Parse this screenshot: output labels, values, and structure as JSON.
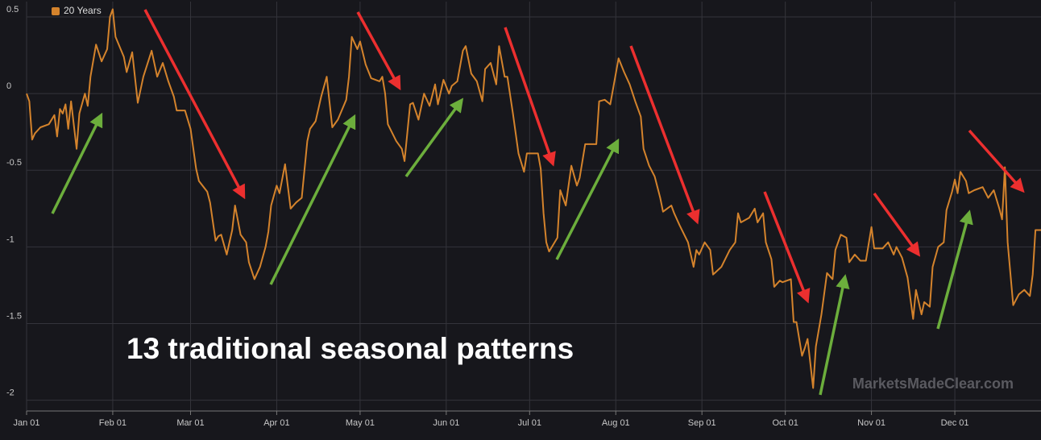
{
  "chart_data": {
    "type": "line",
    "annotation": "13 traditional seasonal patterns",
    "watermark": "MarketsMadeClear.com",
    "x": [
      0,
      1,
      2,
      3,
      5,
      8,
      10,
      11,
      12,
      13,
      14,
      15,
      16,
      18,
      19,
      21,
      22,
      23,
      25,
      27,
      29,
      30,
      31,
      32,
      35,
      36,
      38,
      40,
      42,
      45,
      47,
      49,
      51,
      53,
      54,
      57,
      59,
      61,
      62,
      65,
      66,
      68,
      69,
      70,
      72,
      74,
      75,
      77,
      79,
      80,
      82,
      84,
      86,
      87,
      88,
      90,
      91,
      93,
      95,
      97,
      99,
      101,
      102,
      104,
      106,
      108,
      110,
      112,
      115,
      116,
      117,
      119,
      120,
      122,
      124,
      127,
      128,
      129,
      130,
      133,
      135,
      136,
      138,
      139,
      141,
      143,
      145,
      147,
      148,
      150,
      152,
      153,
      155,
      157,
      158,
      160,
      162,
      164,
      165,
      167,
      169,
      170,
      172,
      173,
      175,
      177,
      179,
      180,
      184,
      185,
      186,
      187,
      188,
      191,
      192,
      194,
      196,
      198,
      199,
      201,
      204,
      205,
      206,
      208,
      210,
      213,
      215,
      217,
      219,
      221,
      222,
      224,
      226,
      228,
      229,
      232,
      233,
      235,
      238,
      240,
      241,
      242,
      244,
      246,
      247,
      250,
      253,
      255,
      256,
      257,
      260,
      262,
      263,
      265,
      266,
      268,
      269,
      271,
      272,
      275,
      276,
      277,
      279,
      280,
      281,
      283,
      284,
      286,
      288,
      290,
      291,
      293,
      295,
      296,
      298,
      300,
      302,
      304,
      305,
      308,
      310,
      312,
      313,
      315,
      317,
      319,
      320,
      322,
      323,
      325,
      326,
      328,
      330,
      331,
      333,
      334,
      335,
      336,
      338,
      339,
      341,
      344,
      346,
      348,
      350,
      351,
      352,
      353,
      355,
      357,
      359,
      361,
      362,
      363,
      365
    ],
    "series": [
      {
        "name": "20 Years",
        "color": "#d4832c",
        "values": [
          0,
          -0.05,
          -0.3,
          -0.26,
          -0.22,
          -0.2,
          -0.14,
          -0.28,
          -0.1,
          -0.13,
          -0.07,
          -0.23,
          -0.05,
          -0.36,
          -0.13,
          0,
          -0.08,
          0.11,
          0.32,
          0.21,
          0.29,
          0.5,
          0.55,
          0.37,
          0.24,
          0.14,
          0.27,
          -0.06,
          0.11,
          0.28,
          0.11,
          0.2,
          0.08,
          -0.02,
          -0.11,
          -0.11,
          -0.23,
          -0.49,
          -0.57,
          -0.64,
          -0.71,
          -0.96,
          -0.93,
          -0.92,
          -1.05,
          -0.89,
          -0.73,
          -0.92,
          -0.97,
          -1.1,
          -1.21,
          -1.13,
          -1.0,
          -0.9,
          -0.73,
          -0.6,
          -0.65,
          -0.46,
          -0.75,
          -0.71,
          -0.68,
          -0.31,
          -0.23,
          -0.18,
          -0.02,
          0.11,
          -0.22,
          -0.17,
          -0.04,
          0.11,
          0.37,
          0.29,
          0.34,
          0.19,
          0.1,
          0.08,
          0.11,
          0,
          -0.2,
          -0.31,
          -0.36,
          -0.44,
          -0.07,
          -0.06,
          -0.17,
          0,
          -0.08,
          0.06,
          -0.07,
          0.09,
          0,
          0.05,
          0.08,
          0.28,
          0.31,
          0.13,
          0.08,
          -0.05,
          0.16,
          0.2,
          0.06,
          0.31,
          0.11,
          0.11,
          -0.13,
          -0.39,
          -0.51,
          -0.39,
          -0.39,
          -0.49,
          -0.78,
          -0.97,
          -1.03,
          -0.94,
          -0.63,
          -0.73,
          -0.47,
          -0.6,
          -0.55,
          -0.33,
          -0.33,
          -0.33,
          -0.05,
          -0.04,
          -0.07,
          0.23,
          0.14,
          0.06,
          -0.05,
          -0.15,
          -0.36,
          -0.47,
          -0.54,
          -0.68,
          -0.77,
          -0.73,
          -0.78,
          -0.86,
          -0.97,
          -1.13,
          -1.02,
          -1.05,
          -0.97,
          -1.02,
          -1.18,
          -1.13,
          -1.02,
          -0.97,
          -0.78,
          -0.84,
          -0.81,
          -0.75,
          -0.84,
          -0.78,
          -0.97,
          -1.08,
          -1.26,
          -1.22,
          -1.23,
          -1.21,
          -1.49,
          -1.49,
          -1.71,
          -1.66,
          -1.6,
          -1.92,
          -1.65,
          -1.44,
          -1.17,
          -1.21,
          -1.02,
          -0.92,
          -0.94,
          -1.1,
          -1.05,
          -1.09,
          -1.09,
          -0.87,
          -1.01,
          -1.01,
          -0.97,
          -1.05,
          -1.0,
          -1.07,
          -1.2,
          -1.47,
          -1.28,
          -1.44,
          -1.36,
          -1.39,
          -1.13,
          -1.0,
          -0.97,
          -0.76,
          -0.64,
          -0.56,
          -0.65,
          -0.51,
          -0.57,
          -0.65,
          -0.63,
          -0.61,
          -0.68,
          -0.63,
          -0.75,
          -0.82,
          -0.48,
          -0.97,
          -1.38,
          -1.31,
          -1.28,
          -1.32,
          -1.18,
          -0.89,
          -0.89
        ]
      }
    ],
    "xlim": [
      0,
      365
    ],
    "xticks": [
      {
        "value": 0,
        "label": "Jan 01"
      },
      {
        "value": 31,
        "label": "Feb 01"
      },
      {
        "value": 59,
        "label": "Mar 01"
      },
      {
        "value": 90,
        "label": "Apr 01"
      },
      {
        "value": 120,
        "label": "May 01"
      },
      {
        "value": 151,
        "label": "Jun 01"
      },
      {
        "value": 181,
        "label": "Jul 01"
      },
      {
        "value": 212,
        "label": "Aug 01"
      },
      {
        "value": 243,
        "label": "Sep 01"
      },
      {
        "value": 273,
        "label": "Oct 01"
      },
      {
        "value": 304,
        "label": "Nov 01"
      },
      {
        "value": 334,
        "label": "Dec 01"
      }
    ],
    "ylim": [
      -2.07,
      0.6
    ],
    "yticks": [
      0.5,
      0,
      -0.5,
      -1,
      -1.5,
      -2
    ],
    "grid": true,
    "legend": "top-left"
  }
}
